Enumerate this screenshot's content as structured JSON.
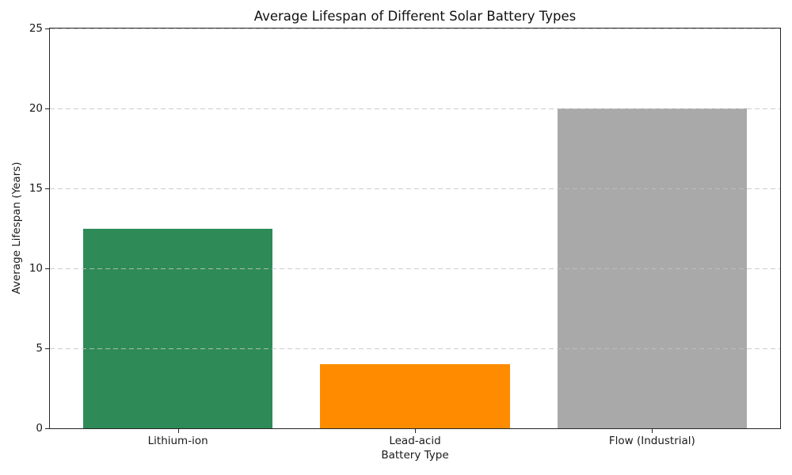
{
  "chart_data": {
    "type": "bar",
    "title": "Average Lifespan of Different Solar Battery Types",
    "xlabel": "Battery Type",
    "ylabel": "Average Lifespan (Years)",
    "categories": [
      "Lithium-ion",
      "Lead-acid",
      "Flow (Industrial)"
    ],
    "values": [
      12.5,
      4,
      20
    ],
    "bar_colors": [
      "#2E8B57",
      "#FF8C00",
      "#A9A9A9"
    ],
    "ylim": [
      0,
      25
    ],
    "yticks": [
      0,
      5,
      10,
      15,
      20,
      25
    ],
    "grid": {
      "axis": "y",
      "style": "dashed",
      "color": "#C3C3C3",
      "above_bars": true
    },
    "frame": {
      "color": "#262626",
      "all_sides": true
    },
    "legend": "none"
  }
}
